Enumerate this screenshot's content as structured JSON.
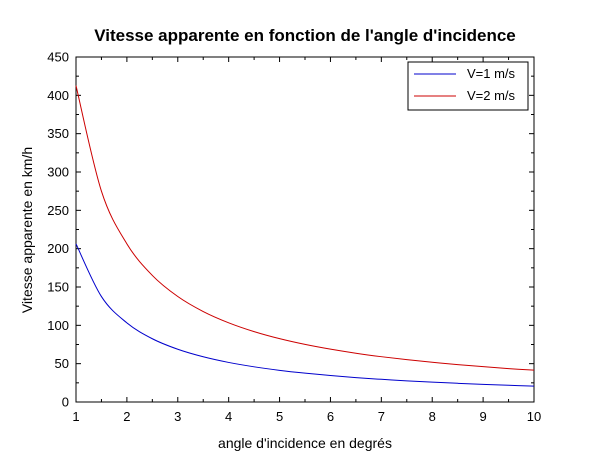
{
  "chart_data": {
    "type": "line",
    "title": "Vitesse apparente en fonction de l'angle d'incidence",
    "xlabel": "angle d'incidence en degrés",
    "ylabel": "Vitesse apparente en km/h",
    "xlim": [
      1,
      10
    ],
    "ylim": [
      0,
      450
    ],
    "xticks": [
      1,
      2,
      3,
      4,
      5,
      6,
      7,
      8,
      9,
      10
    ],
    "yticks": [
      0,
      50,
      100,
      150,
      200,
      250,
      300,
      350,
      400,
      450
    ],
    "grid": false,
    "legend_position": "top-right",
    "x": [
      1,
      1.5,
      2,
      2.5,
      3,
      3.5,
      4,
      4.5,
      5,
      5.5,
      6,
      6.5,
      7,
      7.5,
      8,
      8.5,
      9,
      9.5,
      10
    ],
    "series": [
      {
        "name": "V=1 m/s",
        "color": "#0000cc",
        "values": [
          206.3,
          137.5,
          103.2,
          82.5,
          68.8,
          59.0,
          51.6,
          45.9,
          41.3,
          37.6,
          34.5,
          31.8,
          29.6,
          27.6,
          25.9,
          24.4,
          23.0,
          21.8,
          20.7
        ]
      },
      {
        "name": "V=2 m/s",
        "color": "#cc0000",
        "values": [
          412.6,
          275.0,
          206.3,
          165.1,
          137.6,
          118.0,
          103.3,
          91.8,
          82.6,
          75.1,
          68.9,
          63.6,
          59.1,
          55.2,
          51.8,
          48.8,
          46.1,
          43.6,
          41.5
        ]
      }
    ]
  }
}
